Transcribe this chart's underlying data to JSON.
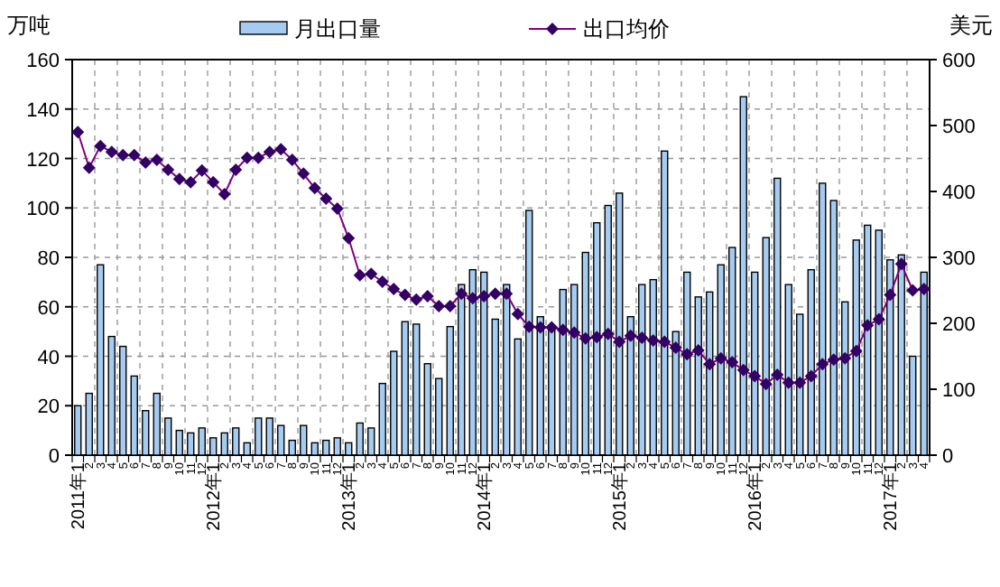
{
  "chart_data": {
    "type": "bar",
    "ylabel": "万吨",
    "y2label": "美元",
    "categories": [
      "2011年1",
      "2",
      "3",
      "4",
      "5",
      "6",
      "7",
      "8",
      "9",
      "10",
      "11",
      "12",
      "2012年1",
      "2",
      "3",
      "4",
      "5",
      "6",
      "7",
      "8",
      "9",
      "10",
      "11",
      "12",
      "2013年1",
      "2",
      "3",
      "4",
      "5",
      "6",
      "7",
      "8",
      "9",
      "10",
      "11",
      "12",
      "2014年1",
      "2",
      "3",
      "4",
      "5",
      "6",
      "7",
      "8",
      "9",
      "10",
      "11",
      "12",
      "2015年1",
      "2",
      "3",
      "4",
      "5",
      "6",
      "7",
      "8",
      "9",
      "10",
      "11",
      "12",
      "2016年1",
      "2",
      "3",
      "4",
      "5",
      "6",
      "7",
      "8",
      "9",
      "10",
      "11",
      "12",
      "2017年1",
      "2",
      "3",
      "4"
    ],
    "series": [
      {
        "name": "月出口量",
        "color": "#a6cbf0",
        "values": [
          20,
          25,
          77,
          48,
          44,
          32,
          18,
          25,
          15,
          10,
          9,
          11,
          7,
          9,
          11,
          5,
          15,
          15,
          12,
          6,
          12,
          5,
          6,
          7,
          5,
          13,
          11,
          29,
          42,
          54,
          53,
          37,
          31,
          52,
          69,
          75,
          74,
          55,
          69,
          47,
          99,
          56,
          51,
          67,
          69,
          82,
          94,
          101,
          106,
          56,
          69,
          71,
          123,
          50,
          74,
          64,
          66,
          77,
          84,
          145,
          74,
          88,
          112,
          69,
          57,
          75,
          110,
          103,
          62,
          87,
          93,
          91,
          79,
          81,
          40,
          74
        ]
      },
      {
        "name": "出口均价",
        "type": "line",
        "axis": "y2",
        "color": "#330066",
        "marker": "diamond",
        "values": [
          490,
          436,
          469,
          460,
          455,
          455,
          444,
          448,
          433,
          419,
          414,
          432,
          414,
          396,
          433,
          451,
          451,
          460,
          464,
          448,
          427,
          405,
          389,
          374,
          329,
          273,
          275,
          263,
          252,
          243,
          236,
          241,
          226,
          226,
          245,
          238,
          241,
          245,
          245,
          214,
          195,
          194,
          194,
          190,
          186,
          177,
          179,
          184,
          172,
          181,
          178,
          174,
          172,
          163,
          153,
          159,
          138,
          147,
          141,
          129,
          120,
          108,
          122,
          110,
          110,
          120,
          138,
          145,
          147,
          158,
          197,
          206,
          243,
          290,
          250,
          252
        ]
      }
    ],
    "ylim": [
      0,
      160
    ],
    "yticks": [
      0,
      20,
      40,
      60,
      80,
      100,
      120,
      140,
      160
    ],
    "y2lim": [
      0,
      600
    ],
    "y2ticks": [
      0,
      100,
      200,
      300,
      400,
      500,
      600
    ],
    "grid": true,
    "legend": "top"
  }
}
